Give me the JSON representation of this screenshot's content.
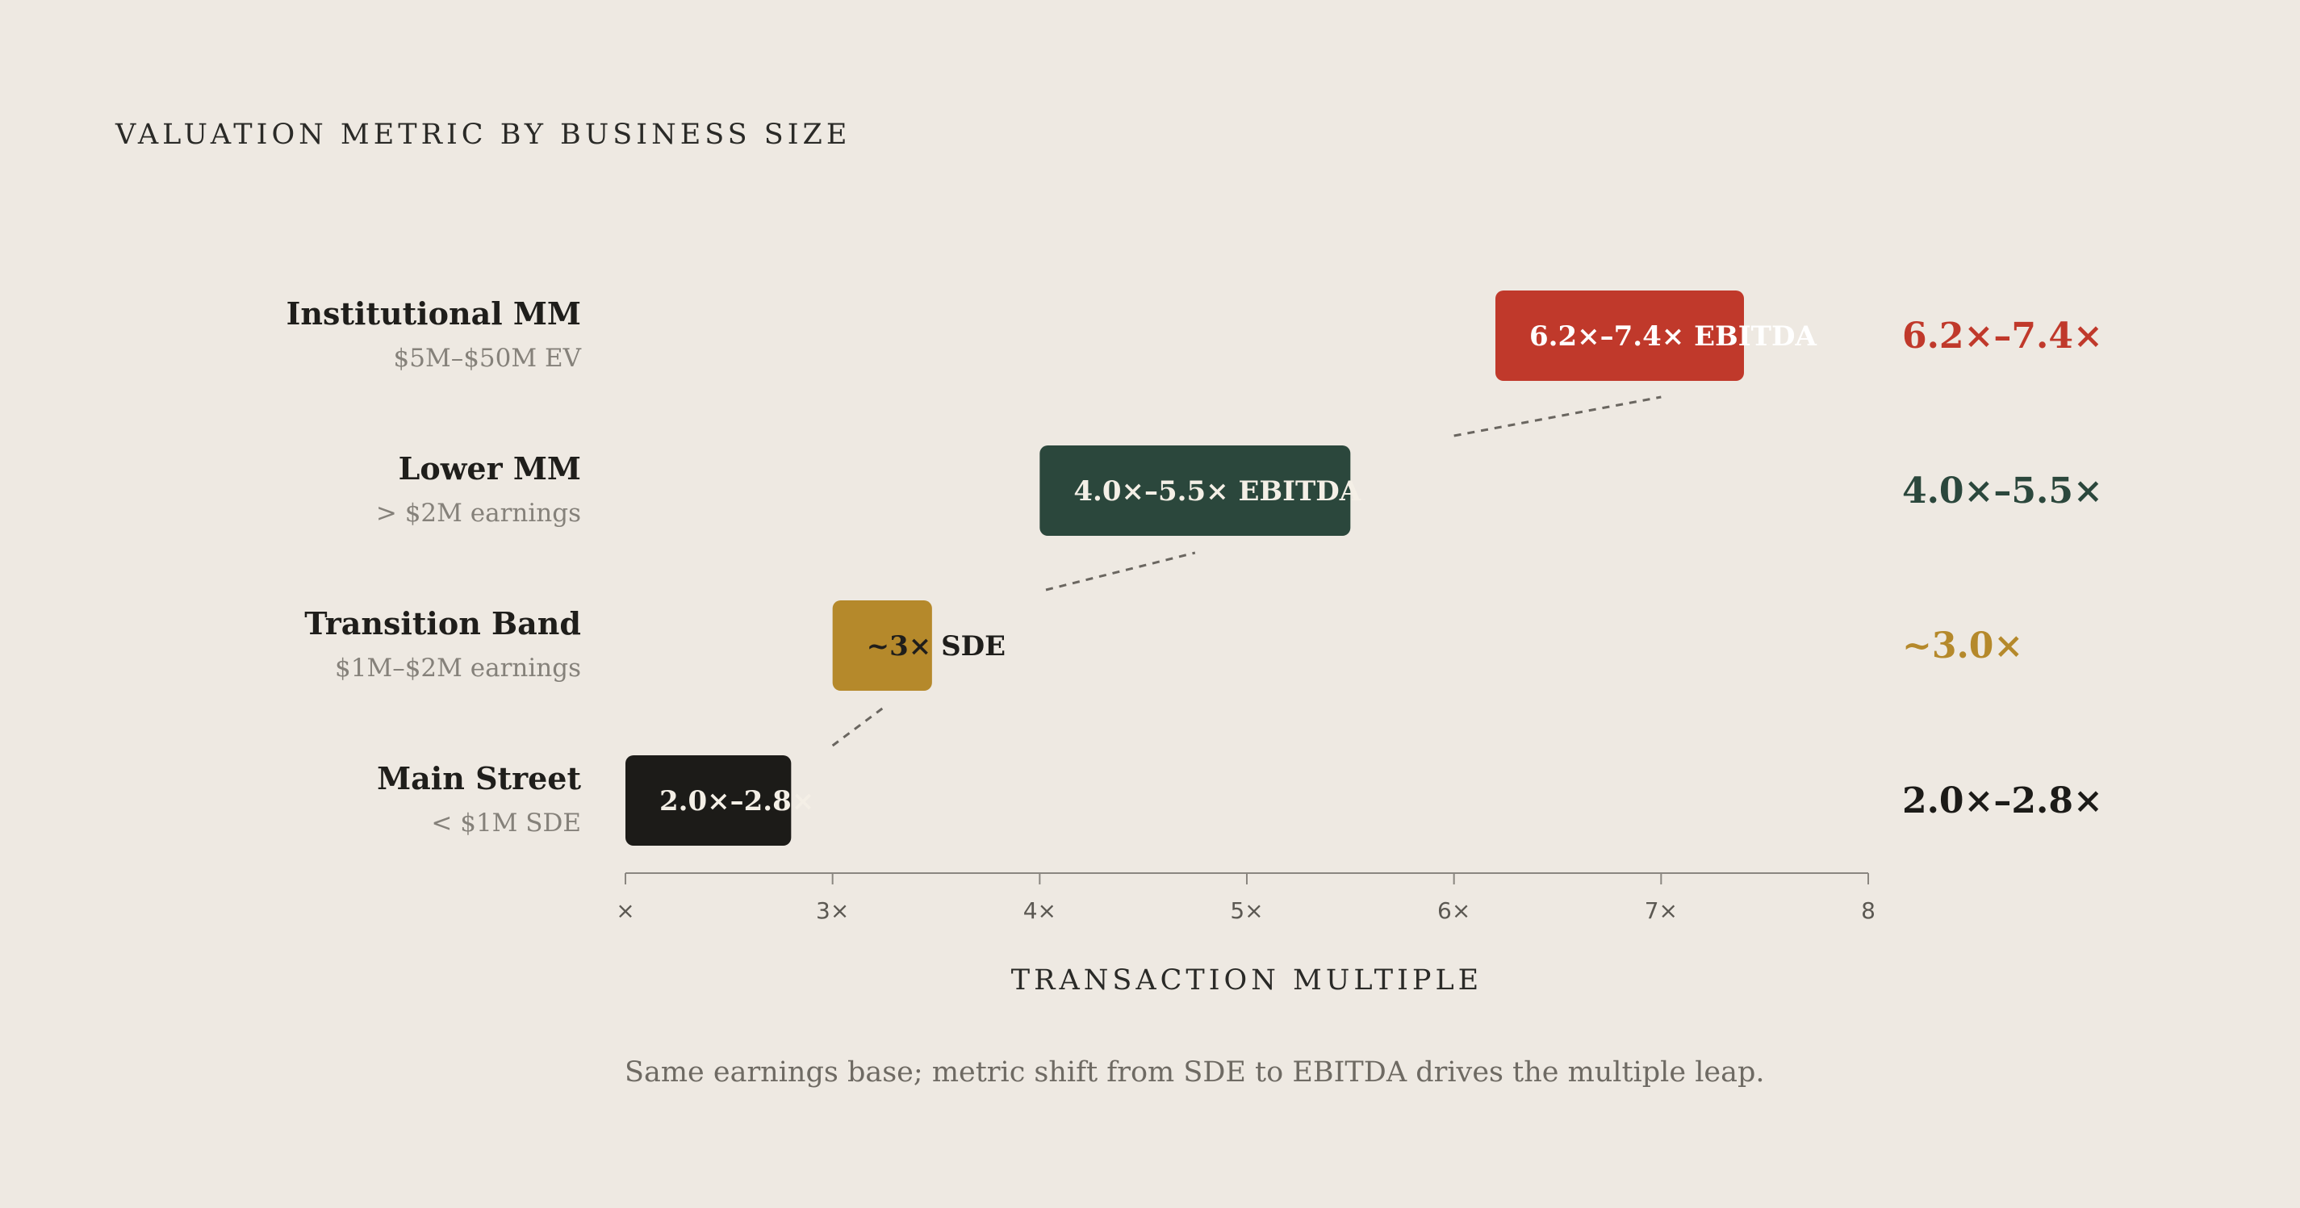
{
  "chart_data": {
    "type": "bar",
    "title": "VALUATION METRIC BY BUSINESS SIZE",
    "xlabel": "TRANSACTION MULTIPLE",
    "xlim": [
      2,
      8
    ],
    "x_ticks": [
      "×",
      "3×",
      "4×",
      "5×",
      "6×",
      "7×",
      "8"
    ],
    "categories": [
      {
        "name": "Institutional MM",
        "sub": "$5M–$50M EV",
        "low": 6.2,
        "high": 7.4,
        "bar_label": "6.2×–7.4× EBITDA",
        "side_label": "6.2×–7.4×",
        "color": "#c0392b",
        "text_color": "#ffffff"
      },
      {
        "name": "Lower MM",
        "sub": "> $2M earnings",
        "low": 4.0,
        "high": 5.5,
        "bar_label": "4.0×–5.5× EBITDA",
        "side_label": "4.0×–5.5×",
        "color": "#2b473c",
        "text_color": "#f4efe6"
      },
      {
        "name": "Transition Band",
        "sub": "$1M–$2M earnings",
        "low": 3.0,
        "high": 3.48,
        "bar_label": "~3× SDE",
        "side_label": "~3.0×",
        "color": "#b5892b",
        "text_color": "#1f1e1b"
      },
      {
        "name": "Main Street",
        "sub": "< $1M SDE",
        "low": 2.0,
        "high": 2.8,
        "bar_label": "2.0×–2.8×",
        "side_label": "2.0×–2.8×",
        "color": "#1c1b18",
        "text_color": "#f4efe6"
      }
    ],
    "connectors": "dashed lines linking each band to the next higher band",
    "grid": false,
    "footnote": "Same earnings base; metric shift from SDE to EBITDA drives the multiple leap."
  }
}
